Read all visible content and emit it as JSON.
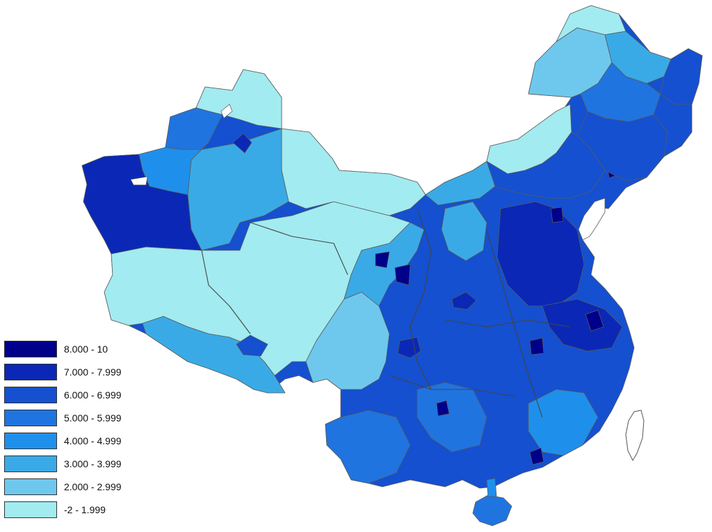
{
  "legend": {
    "items": [
      {
        "label": "8.000 - 10",
        "color": "#00008b"
      },
      {
        "label": "7.000 - 7.999",
        "color": "#0a28b5"
      },
      {
        "label": "6.000 - 6.999",
        "color": "#1450d0"
      },
      {
        "label": "5.000 - 5.999",
        "color": "#1f74e0"
      },
      {
        "label": "4.000 - 4.999",
        "color": "#1e90ec"
      },
      {
        "label": "3.000 - 3.999",
        "color": "#3aaae6"
      },
      {
        "label": "2.000 - 2.999",
        "color": "#6ec8ee"
      },
      {
        "label": "-2 - 1.999",
        "color": "#a2ebf0"
      }
    ]
  }
}
